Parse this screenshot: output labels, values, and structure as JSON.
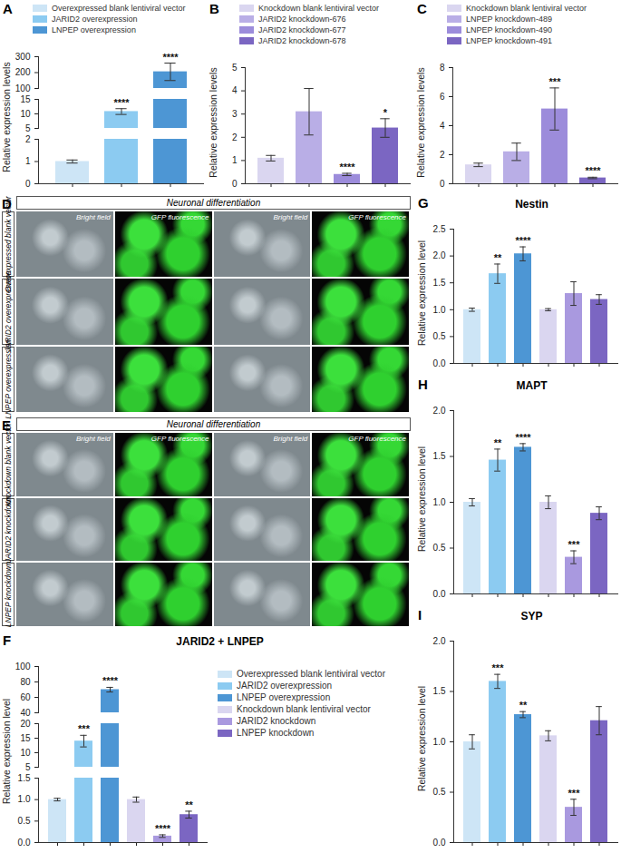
{
  "chart_data": [
    {
      "panel": "A",
      "type": "bar",
      "ylabel": "Relative expression levels",
      "legend": "top",
      "tick_labels": "y",
      "categories": [
        "Overexpressed blank lentiviral vector",
        "JARID2 overexpression",
        "LNPEP overexpression"
      ],
      "colors": [
        "#cde5f6",
        "#8ccbf1",
        "#4d96d4"
      ],
      "values": [
        1.0,
        10.8,
        205
      ],
      "errors": [
        0.07,
        1.0,
        55
      ],
      "annotations": [
        null,
        "****",
        "****"
      ],
      "segments": [
        {
          "ylim": [
            0,
            2
          ],
          "yticks": [
            0,
            1,
            2
          ]
        },
        {
          "ylim": [
            5,
            15
          ],
          "yticks": [
            5,
            10,
            15
          ]
        },
        {
          "ylim": [
            100,
            300
          ],
          "yticks": [
            100,
            200,
            300
          ]
        }
      ]
    },
    {
      "panel": "B",
      "type": "bar",
      "ylabel": "Relative expression levels",
      "legend": "top",
      "tick_labels": "y",
      "categories": [
        "Knockdown blank lentiviral vector",
        "JARID2 knockdown-676",
        "JARID2 knockdown-677",
        "JARID2 knockdown-678"
      ],
      "colors": [
        "#dad6f0",
        "#b9aee6",
        "#9c8cdb",
        "#7b66c2"
      ],
      "values": [
        1.1,
        3.1,
        0.4,
        2.4
      ],
      "errors": [
        0.12,
        1.0,
        0.05,
        0.4
      ],
      "annotations": [
        null,
        null,
        "****",
        "*"
      ],
      "ylim": [
        0,
        5
      ],
      "yticks": [
        0,
        1,
        2,
        3,
        4,
        5
      ]
    },
    {
      "panel": "C",
      "type": "bar",
      "ylabel": "Relative expression levels",
      "legend": "top",
      "tick_labels": "y",
      "categories": [
        "Knockdown blank lentiviral vector",
        "LNPEP knockdown-489",
        "LNPEP knockdown-490",
        "LNPEP knockdown-491"
      ],
      "colors": [
        "#dad6f0",
        "#b9aee6",
        "#9c8cdb",
        "#7b66c2"
      ],
      "values": [
        1.3,
        2.2,
        5.15,
        0.4
      ],
      "errors": [
        0.12,
        0.6,
        1.45,
        0.05
      ],
      "annotations": [
        null,
        null,
        "***",
        "****"
      ],
      "ylim": [
        0,
        8
      ],
      "yticks": [
        0,
        2,
        4,
        6,
        8
      ]
    },
    {
      "panel": "G",
      "type": "bar",
      "title": "Nestin",
      "ylabel": "Relative expression level",
      "tick_labels": "y",
      "categories": [
        "Overexpressed blank lentiviral vector",
        "JARID2 overexpression",
        "LNPEP overexpression",
        "Knockdown blank lentiviral vector",
        "JARID2 knockdown",
        "LNPEP knockdown"
      ],
      "colors": [
        "#cde5f6",
        "#8ccbf1",
        "#4d96d4",
        "#dad6f0",
        "#a999df",
        "#7b66c2"
      ],
      "values": [
        1.0,
        1.67,
        2.04,
        1.0,
        1.3,
        1.19
      ],
      "errors": [
        0.03,
        0.18,
        0.13,
        0.02,
        0.22,
        0.09
      ],
      "annotations": [
        null,
        "**",
        "****",
        null,
        null,
        null
      ],
      "ylim": [
        0,
        2.5
      ],
      "yticks": [
        {
          "value": 0,
          "label": "0.0"
        },
        0.5,
        {
          "value": 1,
          "label": "1.0"
        },
        1.5,
        {
          "value": 2,
          "label": "2.0"
        },
        2.5
      ]
    },
    {
      "panel": "H",
      "type": "bar",
      "title": "MAPT",
      "ylabel": "Relative expression level",
      "tick_labels": "y",
      "categories": [
        "Overexpressed blank lentiviral vector",
        "JARID2 overexpression",
        "LNPEP overexpression",
        "Knockdown blank lentiviral vector",
        "JARID2 knockdown",
        "LNPEP knockdown"
      ],
      "colors": [
        "#cde5f6",
        "#8ccbf1",
        "#4d96d4",
        "#dad6f0",
        "#a999df",
        "#7b66c2"
      ],
      "values": [
        1.0,
        1.46,
        1.6,
        1.0,
        0.4,
        0.88
      ],
      "errors": [
        0.04,
        0.12,
        0.04,
        0.07,
        0.07,
        0.07
      ],
      "annotations": [
        null,
        "**",
        "****",
        null,
        "***",
        null
      ],
      "ylim": [
        0,
        2
      ],
      "yticks": [
        {
          "value": 0,
          "label": "0.0"
        },
        0.5,
        {
          "value": 1,
          "label": "1.0"
        },
        1.5,
        {
          "value": 2,
          "label": "2.0"
        }
      ]
    },
    {
      "panel": "F",
      "type": "bar",
      "title": "JARID2 + LNPEP",
      "ylabel": "Relative expression level",
      "legend": "right",
      "tick_labels": "y",
      "categories": [
        "Overexpressed blank lentiviral vector",
        "JARID2 overexpression",
        "LNPEP overexpression",
        "Knockdown blank lentiviral vector",
        "JARID2 knockdown",
        "LNPEP knockdown"
      ],
      "colors": [
        "#cde5f6",
        "#8ccbf1",
        "#4d96d4",
        "#dad6f0",
        "#a999df",
        "#7b66c2"
      ],
      "values": [
        1.0,
        14,
        70,
        1.0,
        0.15,
        0.65
      ],
      "errors": [
        0.03,
        2,
        3,
        0.06,
        0.03,
        0.08
      ],
      "annotations": [
        null,
        "***",
        "****",
        null,
        "****",
        "**"
      ],
      "segments": [
        {
          "ylim": [
            0,
            1.5
          ],
          "yticks": [
            {
              "value": 0,
              "label": "0.0"
            },
            0.5,
            {
              "value": 1,
              "label": "1.0"
            },
            1.5
          ]
        },
        {
          "ylim": [
            5,
            20
          ],
          "yticks": [
            5,
            10,
            15,
            20
          ]
        },
        {
          "ylim": [
            40,
            100
          ],
          "yticks": [
            40,
            60,
            80,
            100
          ]
        }
      ]
    },
    {
      "panel": "I",
      "type": "bar",
      "title": "SYP",
      "ylabel": "Relative expression level",
      "tick_labels": "y",
      "categories": [
        "Overexpressed blank lentiviral vector",
        "JARID2 overexpression",
        "LNPEP overexpression",
        "Knockdown blank lentiviral vector",
        "JARID2 knockdown",
        "LNPEP knockdown"
      ],
      "colors": [
        "#cde5f6",
        "#8ccbf1",
        "#4d96d4",
        "#dad6f0",
        "#a999df",
        "#7b66c2"
      ],
      "values": [
        1.0,
        1.6,
        1.27,
        1.06,
        0.35,
        1.21
      ],
      "errors": [
        0.07,
        0.07,
        0.03,
        0.05,
        0.08,
        0.14
      ],
      "annotations": [
        null,
        "***",
        "**",
        null,
        "***",
        null
      ],
      "ylim": [
        0,
        2
      ],
      "yticks": [
        {
          "value": 0,
          "label": "0.0"
        },
        0.5,
        {
          "value": 1,
          "label": "1.0"
        },
        1.5,
        {
          "value": 2,
          "label": "2.0"
        }
      ]
    }
  ],
  "image_panels": [
    {
      "panel": "D",
      "header": "Neuronal differentiation",
      "columns": [
        "Bright field",
        "GFP fluorescence",
        "Bright field",
        "GFP fluorescence"
      ],
      "rows": [
        "Overexpressed blank vector",
        "JARID2 overexpression",
        "LNPEP overexpression"
      ]
    },
    {
      "panel": "E",
      "header": "Neuronal differentiation",
      "columns": [
        "Bright field",
        "GFP fluorescence",
        "Bright field",
        "GFP fluorescence"
      ],
      "rows": [
        "Knockdown blank vector",
        "JARID2 knockdown",
        "LNPEP knockdown"
      ]
    }
  ]
}
